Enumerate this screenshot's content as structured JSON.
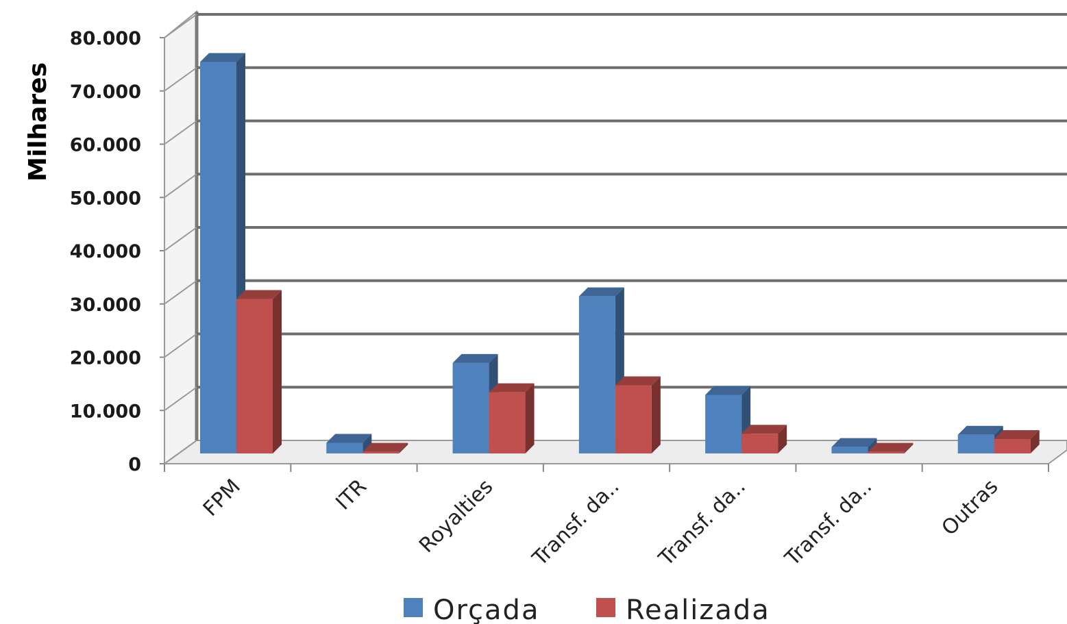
{
  "chart_data": {
    "type": "bar",
    "ylabel": "Milhares",
    "ylim": [
      0,
      80000
    ],
    "y_ticks": [
      0,
      10000,
      20000,
      30000,
      40000,
      50000,
      60000,
      70000,
      80000
    ],
    "y_tick_labels": [
      "0",
      "10.000",
      "20.000",
      "30.000",
      "40.000",
      "50.000",
      "60.000",
      "70.000",
      "80.000"
    ],
    "categories": [
      "FPM",
      "ITR",
      "Royalties",
      "Transf. da..",
      "Transf. da..",
      "Transf. da..",
      "Outras"
    ],
    "series": [
      {
        "name": "Orçada",
        "values": [
          73500,
          2000,
          17000,
          29500,
          11000,
          1200,
          3500
        ],
        "color": "#4F81BD"
      },
      {
        "name": "Realizada",
        "values": [
          29000,
          300,
          11500,
          12800,
          3700,
          300,
          2700
        ],
        "color": "#C0504D"
      }
    ],
    "grid": true,
    "legend_position": "bottom",
    "style": "3d-clustered-column"
  }
}
